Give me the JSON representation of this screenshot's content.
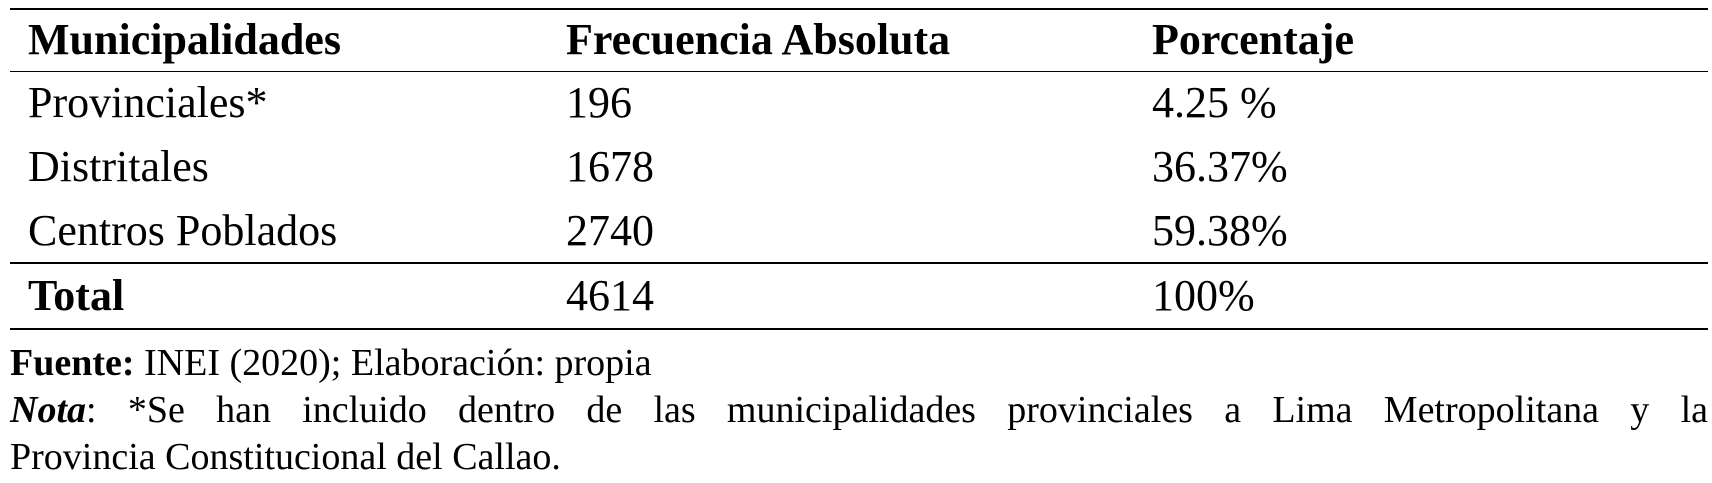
{
  "table": {
    "headers": [
      "Municipalidades",
      "Frecuencia Absoluta",
      "Porcentaje"
    ],
    "rows": [
      [
        "Provinciales*",
        "196",
        "4.25 %"
      ],
      [
        "Distritales",
        "1678",
        "36.37%"
      ],
      [
        "Centros Poblados",
        "2740",
        "59.38%"
      ]
    ],
    "total": [
      "Total",
      "4614",
      "100%"
    ]
  },
  "source": {
    "label": "Fuente:",
    "text": " INEI (2020); Elaboración: propia"
  },
  "note": {
    "label": "Nota",
    "line1": ": *Se han incluido dentro de las municipalidades provinciales a Lima Metropolitana y la",
    "line2": "Provincia Constitucional del Callao."
  }
}
